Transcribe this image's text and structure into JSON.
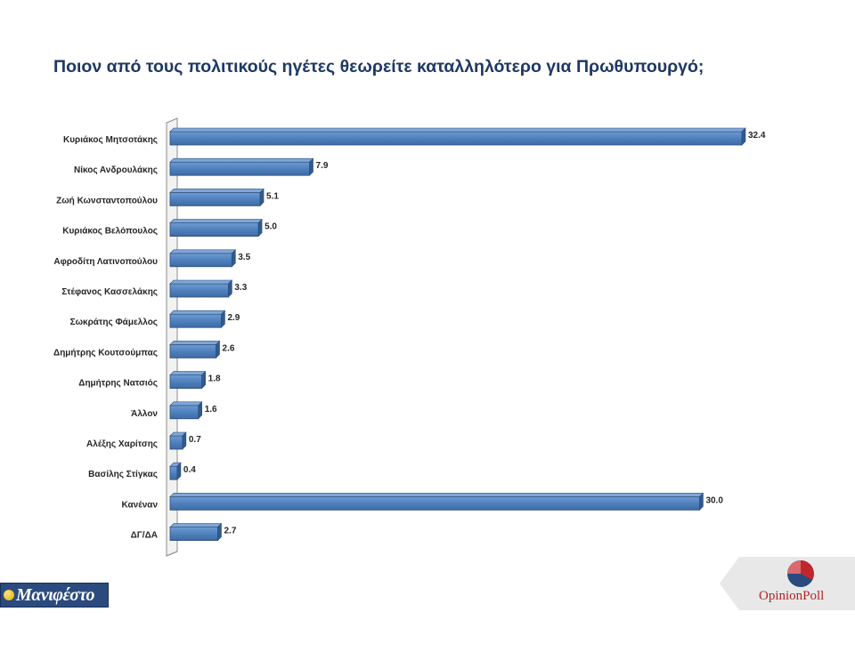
{
  "title": "Ποιον από τους πολιτικούς ηγέτες θεωρείτε καταλληλότερο για Πρωθυπουργό;",
  "chart_data": {
    "type": "bar",
    "orientation": "horizontal",
    "title": "Ποιον από τους πολιτικούς ηγέτες θεωρείτε καταλληλότερο για Πρωθυπουργό;",
    "categories": [
      "Κυριάκος Μητσοτάκης",
      "Νίκος Ανδρουλάκης",
      "Ζωή Κωνσταντοπούλου",
      "Κυριάκος Βελόπουλος",
      "Αφροδίτη Λατινοπούλου",
      "Στέφανος Κασσελάκης",
      "Σωκράτης Φάμελλος",
      "Δημήτρης Κουτσούμπας",
      "Δημήτρης Νατσιός",
      "Άλλον",
      "Αλέξης Χαρίτσης",
      "Βασίλης Στίγκας",
      "Κανέναν",
      "ΔΓ/ΔΑ"
    ],
    "values": [
      32.4,
      7.9,
      5.1,
      5.0,
      3.5,
      3.3,
      2.9,
      2.6,
      1.8,
      1.6,
      0.7,
      0.4,
      30.0,
      2.7
    ],
    "value_labels": [
      "32.4",
      "7.9",
      "5.1",
      "5.0",
      "3.5",
      "3.3",
      "2.9",
      "2.6",
      "1.8",
      "1.6",
      "0.7",
      "0.4",
      "30.0",
      "2.7"
    ],
    "xlim": [
      0,
      33
    ],
    "grid": false,
    "bar_color": "#4f81bd",
    "bar_edge_color": "#2f4f7a"
  },
  "logos": {
    "left_text": "Μανιφέστο",
    "right_text": "OpinionPoll",
    "left_color": "#2b4a7e",
    "right_color": "#b22222"
  }
}
